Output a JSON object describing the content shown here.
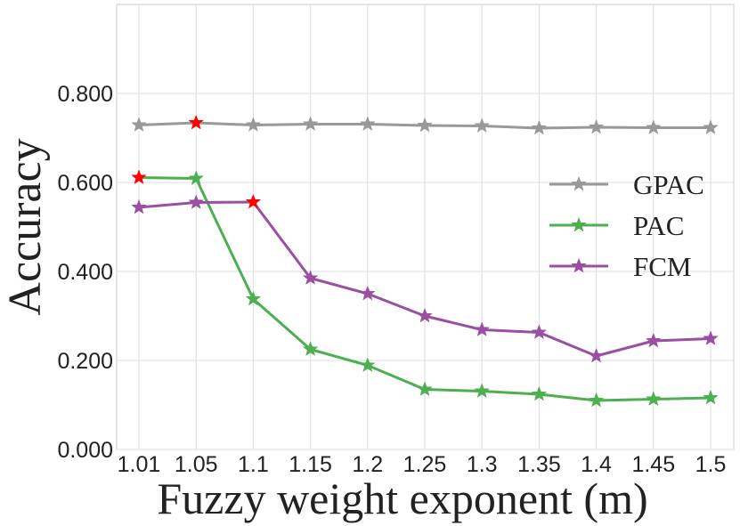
{
  "chart_data": {
    "type": "line",
    "title": "",
    "xlabel": "Fuzzy weight exponent (m)",
    "ylabel": "Accuracy",
    "categories": [
      "1.01",
      "1.05",
      "1.1",
      "1.15",
      "1.2",
      "1.25",
      "1.3",
      "1.35",
      "1.4",
      "1.45",
      "1.5"
    ],
    "yticks": [
      "0.000",
      "0.200",
      "0.400",
      "0.600",
      "0.800"
    ],
    "ylim": [
      0,
      1.0
    ],
    "grid": true,
    "legend_position": "right",
    "series": [
      {
        "name": "GPAC",
        "color": "#999999",
        "values": [
          0.729,
          0.734,
          0.729,
          0.731,
          0.731,
          0.728,
          0.727,
          0.722,
          0.724,
          0.723,
          0.723
        ],
        "highlight_index": 1
      },
      {
        "name": "PAC",
        "color": "#4caf50",
        "values": [
          0.611,
          0.609,
          0.338,
          0.225,
          0.189,
          0.135,
          0.131,
          0.124,
          0.11,
          0.113,
          0.116
        ],
        "highlight_index": 0
      },
      {
        "name": "FCM",
        "color": "#9b4fa3",
        "values": [
          0.544,
          0.555,
          0.556,
          0.385,
          0.35,
          0.3,
          0.269,
          0.263,
          0.21,
          0.244,
          0.249
        ],
        "highlight_index": 2
      }
    ],
    "highlight_color": "#ff0000"
  }
}
